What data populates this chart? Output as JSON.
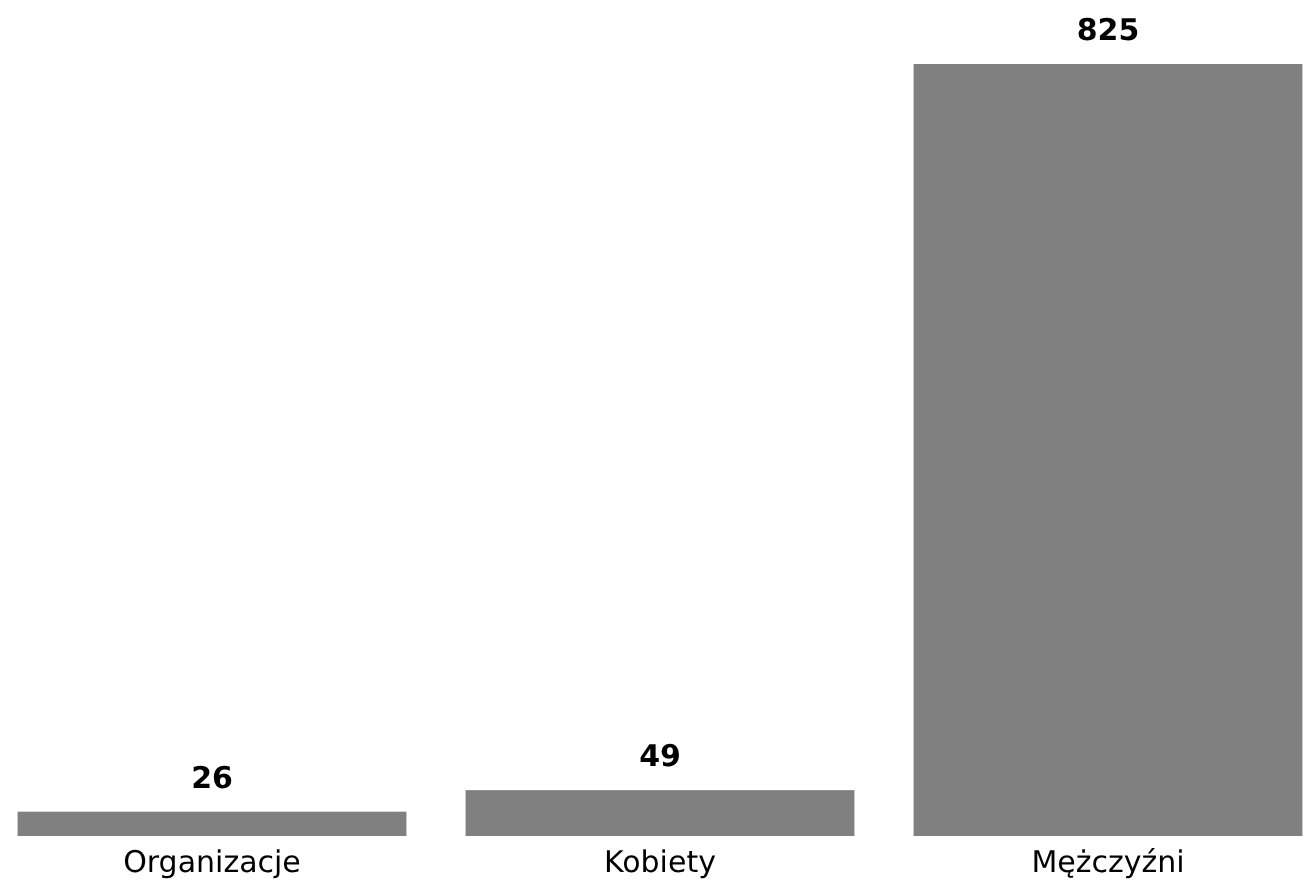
{
  "chart_data": {
    "type": "bar",
    "categories": [
      "Organizacje",
      "Kobiety",
      "Mężczyźni"
    ],
    "values": [
      26,
      49,
      825
    ],
    "color": "#808080",
    "data_labels": true
  }
}
